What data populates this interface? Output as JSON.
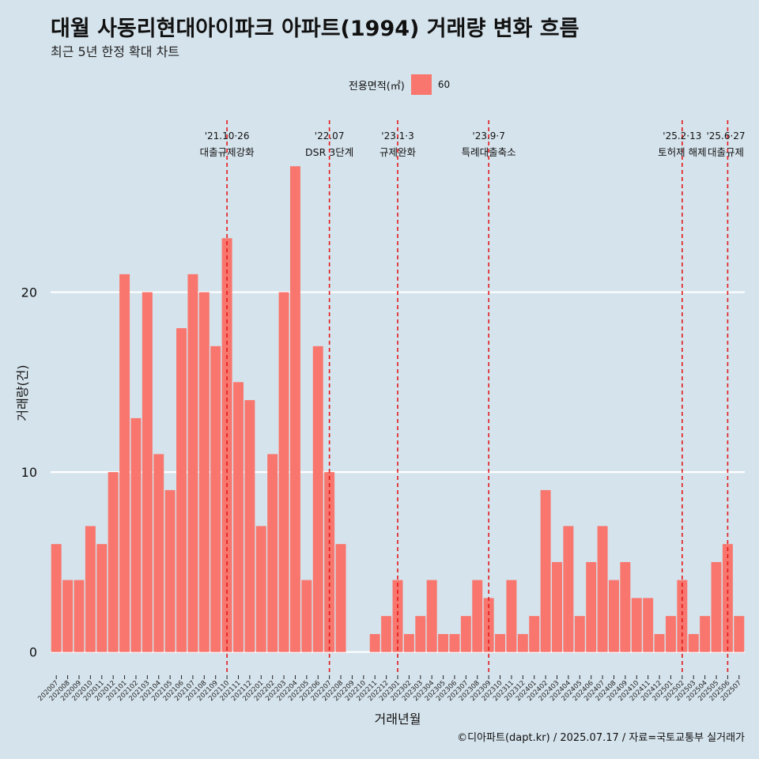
{
  "title": "대월 사동리현대아이파크 아파트(1994) 거래량 변화 흐름",
  "subtitle": "최근 5년 한정 확대 차트",
  "legend": {
    "title": "전용면적(㎡)",
    "label": "60",
    "color": "#f8766d"
  },
  "caption": "©디아파트(dapt.kr) / 2025.07.17 / 자료=국토교통부 실거래가",
  "chart_data": {
    "type": "bar",
    "xlabel": "거래년월",
    "ylabel": "거래량(건)",
    "ylim": [
      -1.2,
      30
    ],
    "yticks": [
      0,
      10,
      20
    ],
    "grid": "horizontal",
    "legend_position": "top",
    "bar_color": "#f8766d",
    "categories": [
      "202007",
      "202008",
      "202009",
      "202010",
      "202011",
      "202012",
      "202101",
      "202102",
      "202103",
      "202104",
      "202105",
      "202106",
      "202107",
      "202108",
      "202109",
      "202110",
      "202111",
      "202112",
      "202201",
      "202202",
      "202203",
      "202204",
      "202205",
      "202206",
      "202207",
      "202208",
      "202209",
      "202210",
      "202211",
      "202212",
      "202301",
      "202302",
      "202303",
      "202304",
      "202305",
      "202306",
      "202307",
      "202308",
      "202309",
      "202310",
      "202311",
      "202312",
      "202401",
      "202402",
      "202403",
      "202404",
      "202405",
      "202406",
      "202407",
      "202408",
      "202409",
      "202410",
      "202411",
      "202412",
      "202501",
      "202502",
      "202503",
      "202504",
      "202505",
      "202506",
      "202507"
    ],
    "values": [
      6,
      4,
      4,
      7,
      6,
      10,
      21,
      13,
      20,
      11,
      9,
      18,
      21,
      20,
      17,
      23,
      15,
      14,
      7,
      11,
      20,
      27,
      4,
      17,
      10,
      6,
      0,
      0,
      1,
      2,
      4,
      1,
      2,
      4,
      1,
      1,
      2,
      4,
      3,
      1,
      4,
      1,
      2,
      9,
      5,
      7,
      2,
      5,
      7,
      4,
      5,
      3,
      3,
      1,
      2,
      4,
      1,
      2,
      5,
      6,
      2
    ],
    "annotations": [
      {
        "category": "202110",
        "date": "'21.10·26",
        "label": "대출규제강화"
      },
      {
        "category": "202207",
        "date": "'22.07",
        "label": "DSR 3단계"
      },
      {
        "category": "202301",
        "date": "'23.1·3",
        "label": "규제완화"
      },
      {
        "category": "202309",
        "date": "'23.9·7",
        "label": "특례대출축소"
      },
      {
        "category": "202502",
        "date": "'25.2·13",
        "label": "토허제 해제"
      },
      {
        "category": "202506",
        "date": "'25.6·27",
        "label": "대출규제"
      }
    ]
  }
}
